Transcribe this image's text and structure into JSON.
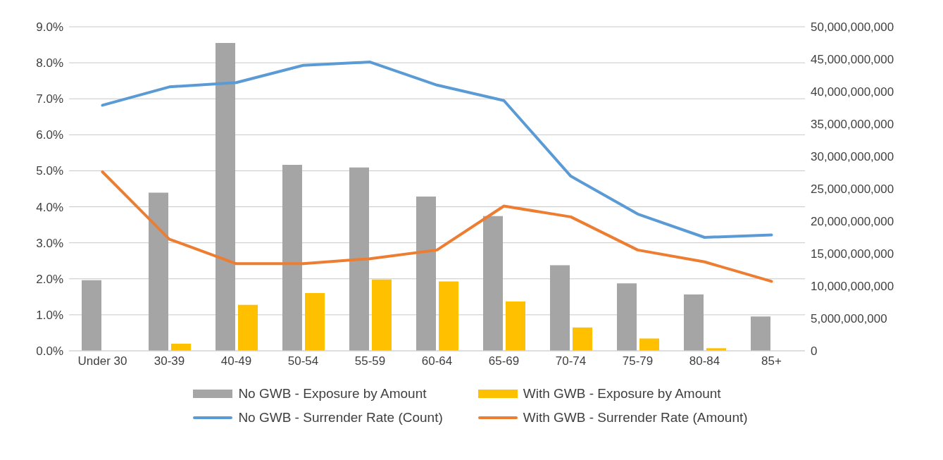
{
  "chart_data": {
    "type": "bar",
    "categories": [
      "Under 30",
      "30-39",
      "40-49",
      "50-54",
      "55-59",
      "60-64",
      "65-69",
      "70-74",
      "75-79",
      "80-84",
      "85+"
    ],
    "series": [
      {
        "name": "No GWB - Exposure by Amount",
        "axis": "y2",
        "color": "#a5a5a5",
        "values": [
          10900000000,
          24400000000,
          47500000000,
          28700000000,
          28300000000,
          23800000000,
          20800000000,
          13200000000,
          10400000000,
          8700000000,
          5300000000
        ]
      },
      {
        "name": "With GWB - Exposure by Amount",
        "axis": "y2",
        "color": "#ffc000",
        "values": [
          0,
          1100000000,
          7100000000,
          8900000000,
          11000000000,
          10700000000,
          7600000000,
          3600000000,
          1900000000,
          400000000,
          0
        ]
      },
      {
        "name": "No GWB - Surrender Rate (Count)",
        "type": "line",
        "axis": "y",
        "color": "#5b9bd5",
        "values": [
          6.82,
          7.33,
          7.45,
          7.93,
          8.02,
          7.38,
          6.95,
          4.85,
          3.8,
          3.15,
          3.22
        ]
      },
      {
        "name": "With GWB - Surrender Rate (Amount)",
        "type": "line",
        "axis": "y",
        "color": "#ed7d31",
        "values": [
          4.97,
          3.1,
          2.42,
          2.42,
          2.56,
          2.8,
          4.02,
          3.72,
          2.8,
          2.47,
          1.93
        ]
      }
    ],
    "ylim": [
      0,
      9
    ],
    "yticks": [
      {
        "value": 0,
        "label": "0.0%"
      },
      {
        "value": 1,
        "label": "1.0%"
      },
      {
        "value": 2,
        "label": "2.0%"
      },
      {
        "value": 3,
        "label": "3.0%"
      },
      {
        "value": 4,
        "label": "4.0%"
      },
      {
        "value": 5,
        "label": "5.0%"
      },
      {
        "value": 6,
        "label": "6.0%"
      },
      {
        "value": 7,
        "label": "7.0%"
      },
      {
        "value": 8,
        "label": "8.0%"
      },
      {
        "value": 9,
        "label": "9.0%"
      }
    ],
    "y2lim": [
      0,
      50000000000
    ],
    "y2ticks": [
      {
        "value": 0,
        "label": "0"
      },
      {
        "value": 5000000000,
        "label": "5,000,000,000"
      },
      {
        "value": 10000000000,
        "label": "10,000,000,000"
      },
      {
        "value": 15000000000,
        "label": "15,000,000,000"
      },
      {
        "value": 20000000000,
        "label": "20,000,000,000"
      },
      {
        "value": 25000000000,
        "label": "25,000,000,000"
      },
      {
        "value": 30000000000,
        "label": "30,000,000,000"
      },
      {
        "value": 35000000000,
        "label": "35,000,000,000"
      },
      {
        "value": 40000000000,
        "label": "40,000,000,000"
      },
      {
        "value": 45000000000,
        "label": "45,000,000,000"
      },
      {
        "value": 50000000000,
        "label": "50,000,000,000"
      }
    ],
    "grid": "y",
    "legend": "bottom",
    "marker": "none",
    "line_style": "solid"
  }
}
